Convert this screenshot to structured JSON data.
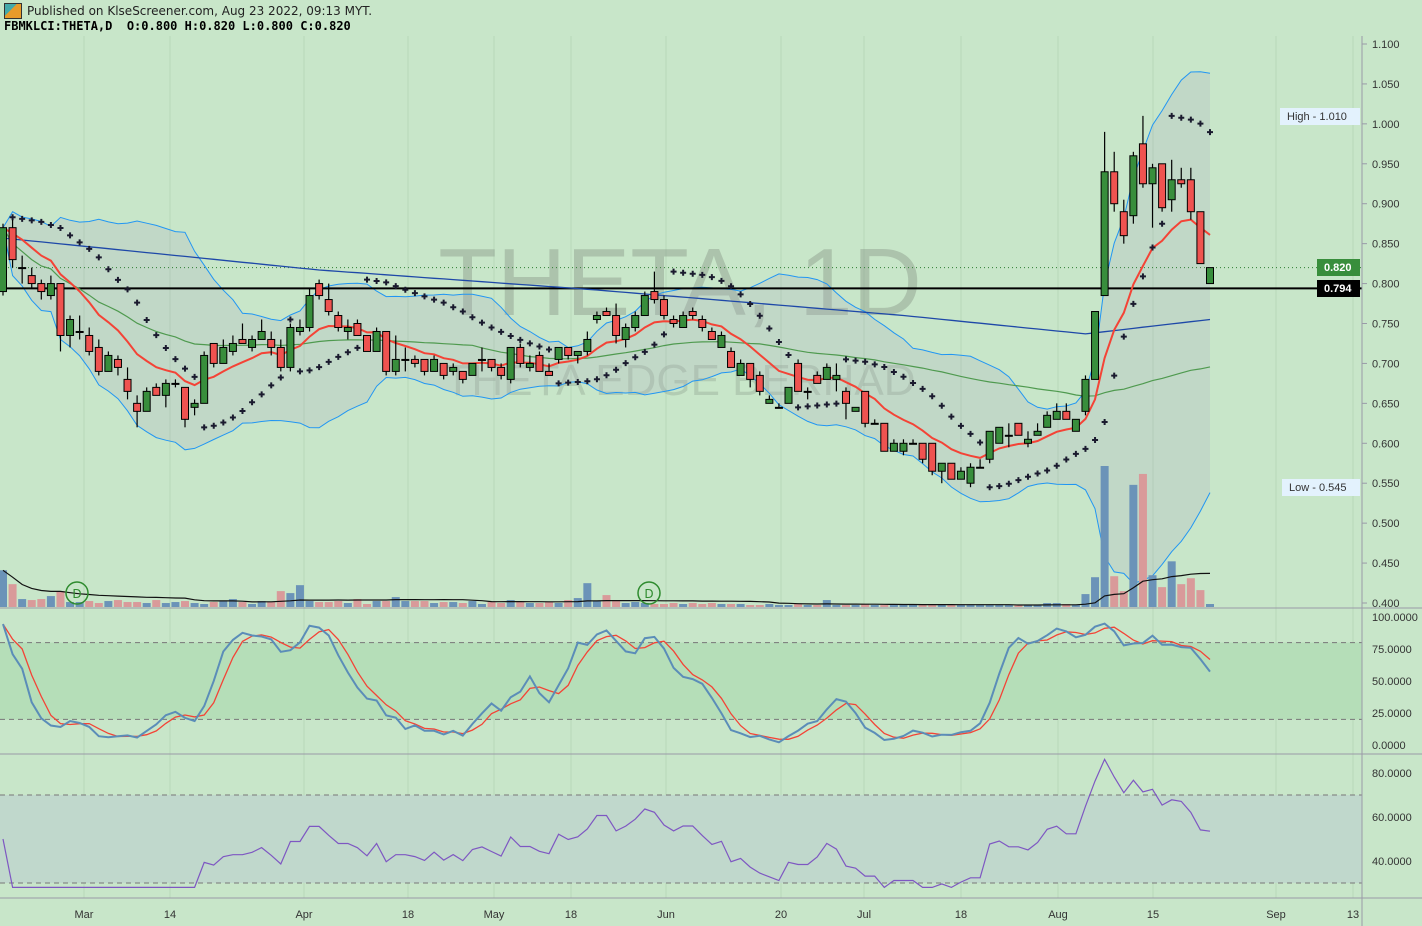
{
  "header": {
    "published": "Published on KlseScreener.com, Aug 23 2022, 09:13 MYT.",
    "symbol_line": "FBMKLCI:THETA,D  O:0.800 H:0.820 L:0.800 C:0.820"
  },
  "watermark": {
    "main": "THETA, 1D",
    "sub": "THETA EDGE BERHAD"
  },
  "colors": {
    "background": "#c8e6c9",
    "up": "#388e3c",
    "down": "#ef5350",
    "vol_up": "#6b93b8",
    "vol_down": "#d99a9a",
    "ema": "#f44336",
    "sma": "#4f9a4f",
    "ma_long": "#1e48a8",
    "bollinger": "#2196f3",
    "stoch_k": "#5b8db8",
    "stoch_d": "#f44336",
    "rsi": "#7e57c2",
    "sar": "#1a1a2e"
  },
  "markers": [
    {
      "label": "D"
    },
    {
      "label": "D"
    }
  ],
  "badges": {
    "high": "High - 1.010",
    "low": "Low - 0.545",
    "last": "0.820",
    "level": "0.794"
  },
  "chart_data": {
    "type": "candlestick",
    "price_ticks": [
      "1.100",
      "1.050",
      "1.000",
      "0.950",
      "0.900",
      "0.850",
      "0.800",
      "0.750",
      "0.700",
      "0.650",
      "0.600",
      "0.550",
      "0.500",
      "0.450",
      "0.400"
    ],
    "price_range": [
      0.4,
      1.1
    ],
    "x_tick_labels": [
      "Mar",
      "14",
      "Apr",
      "18",
      "May",
      "18",
      "Jun",
      "20",
      "Jul",
      "18",
      "Aug",
      "15",
      "Sep",
      "13"
    ],
    "stoch_ticks": [
      "100.0000",
      "75.0000",
      "50.0000",
      "25.0000",
      "0.0000"
    ],
    "stoch_bands": [
      20,
      80
    ],
    "rsi_ticks": [
      "80.0000",
      "60.0000",
      "40.0000"
    ],
    "rsi_bands": [
      30,
      70
    ],
    "last_price": 0.82,
    "horizontal_level": 0.794,
    "period_high": 1.01,
    "period_low": 0.545,
    "ohlc": [
      [
        0.79,
        0.875,
        0.785,
        0.87
      ],
      [
        0.87,
        0.88,
        0.82,
        0.83
      ],
      [
        0.82,
        0.835,
        0.8,
        0.82
      ],
      [
        0.81,
        0.82,
        0.795,
        0.8
      ],
      [
        0.8,
        0.805,
        0.78,
        0.79
      ],
      [
        0.785,
        0.81,
        0.78,
        0.8
      ],
      [
        0.8,
        0.8,
        0.715,
        0.735
      ],
      [
        0.735,
        0.76,
        0.72,
        0.755
      ],
      [
        0.74,
        0.76,
        0.73,
        0.74
      ],
      [
        0.735,
        0.745,
        0.71,
        0.715
      ],
      [
        0.72,
        0.73,
        0.685,
        0.69
      ],
      [
        0.69,
        0.715,
        0.69,
        0.71
      ],
      [
        0.705,
        0.71,
        0.685,
        0.695
      ],
      [
        0.68,
        0.695,
        0.655,
        0.665
      ],
      [
        0.65,
        0.66,
        0.62,
        0.64
      ],
      [
        0.64,
        0.67,
        0.64,
        0.665
      ],
      [
        0.67,
        0.675,
        0.66,
        0.66
      ],
      [
        0.66,
        0.68,
        0.645,
        0.675
      ],
      [
        0.675,
        0.68,
        0.67,
        0.675
      ],
      [
        0.67,
        0.67,
        0.62,
        0.63
      ],
      [
        0.645,
        0.655,
        0.635,
        0.65
      ],
      [
        0.65,
        0.715,
        0.65,
        0.71
      ],
      [
        0.725,
        0.725,
        0.695,
        0.7
      ],
      [
        0.7,
        0.73,
        0.7,
        0.72
      ],
      [
        0.715,
        0.735,
        0.71,
        0.725
      ],
      [
        0.73,
        0.75,
        0.725,
        0.725
      ],
      [
        0.72,
        0.735,
        0.715,
        0.73
      ],
      [
        0.73,
        0.755,
        0.73,
        0.74
      ],
      [
        0.73,
        0.74,
        0.71,
        0.72
      ],
      [
        0.72,
        0.73,
        0.69,
        0.695
      ],
      [
        0.695,
        0.75,
        0.69,
        0.745
      ],
      [
        0.74,
        0.755,
        0.735,
        0.745
      ],
      [
        0.745,
        0.795,
        0.74,
        0.785
      ],
      [
        0.8,
        0.805,
        0.78,
        0.785
      ],
      [
        0.78,
        0.8,
        0.76,
        0.765
      ],
      [
        0.76,
        0.765,
        0.74,
        0.745
      ],
      [
        0.74,
        0.755,
        0.73,
        0.745
      ],
      [
        0.75,
        0.755,
        0.735,
        0.735
      ],
      [
        0.735,
        0.735,
        0.715,
        0.715
      ],
      [
        0.715,
        0.745,
        0.715,
        0.74
      ],
      [
        0.74,
        0.74,
        0.685,
        0.69
      ],
      [
        0.69,
        0.735,
        0.685,
        0.705
      ],
      [
        0.705,
        0.72,
        0.69,
        0.705
      ],
      [
        0.705,
        0.71,
        0.695,
        0.7
      ],
      [
        0.705,
        0.705,
        0.685,
        0.69
      ],
      [
        0.69,
        0.71,
        0.69,
        0.705
      ],
      [
        0.7,
        0.7,
        0.68,
        0.685
      ],
      [
        0.69,
        0.7,
        0.685,
        0.695
      ],
      [
        0.69,
        0.69,
        0.675,
        0.68
      ],
      [
        0.685,
        0.7,
        0.685,
        0.7
      ],
      [
        0.705,
        0.72,
        0.69,
        0.705
      ],
      [
        0.705,
        0.705,
        0.69,
        0.695
      ],
      [
        0.695,
        0.7,
        0.68,
        0.685
      ],
      [
        0.68,
        0.72,
        0.675,
        0.72
      ],
      [
        0.72,
        0.725,
        0.695,
        0.7
      ],
      [
        0.695,
        0.71,
        0.69,
        0.7
      ],
      [
        0.71,
        0.715,
        0.69,
        0.69
      ],
      [
        0.69,
        0.7,
        0.685,
        0.685
      ],
      [
        0.705,
        0.72,
        0.7,
        0.72
      ],
      [
        0.72,
        0.72,
        0.705,
        0.71
      ],
      [
        0.71,
        0.715,
        0.7,
        0.715
      ],
      [
        0.715,
        0.74,
        0.71,
        0.73
      ],
      [
        0.755,
        0.765,
        0.75,
        0.76
      ],
      [
        0.765,
        0.77,
        0.76,
        0.76
      ],
      [
        0.76,
        0.775,
        0.725,
        0.735
      ],
      [
        0.73,
        0.75,
        0.72,
        0.745
      ],
      [
        0.745,
        0.765,
        0.74,
        0.76
      ],
      [
        0.76,
        0.79,
        0.76,
        0.785
      ],
      [
        0.79,
        0.815,
        0.775,
        0.78
      ],
      [
        0.78,
        0.785,
        0.755,
        0.76
      ],
      [
        0.755,
        0.76,
        0.745,
        0.75
      ],
      [
        0.745,
        0.765,
        0.745,
        0.76
      ],
      [
        0.765,
        0.77,
        0.755,
        0.76
      ],
      [
        0.755,
        0.76,
        0.74,
        0.745
      ],
      [
        0.74,
        0.745,
        0.73,
        0.73
      ],
      [
        0.72,
        0.74,
        0.72,
        0.735
      ],
      [
        0.715,
        0.72,
        0.695,
        0.695
      ],
      [
        0.685,
        0.705,
        0.685,
        0.7
      ],
      [
        0.7,
        0.7,
        0.67,
        0.68
      ],
      [
        0.685,
        0.69,
        0.66,
        0.665
      ],
      [
        0.65,
        0.66,
        0.65,
        0.655
      ],
      [
        0.645,
        0.65,
        0.645,
        0.645
      ],
      [
        0.65,
        0.67,
        0.65,
        0.67
      ],
      [
        0.7,
        0.705,
        0.665,
        0.665
      ],
      [
        0.665,
        0.67,
        0.655,
        0.665
      ],
      [
        0.685,
        0.69,
        0.675,
        0.675
      ],
      [
        0.68,
        0.7,
        0.68,
        0.695
      ],
      [
        0.68,
        0.7,
        0.665,
        0.685
      ],
      [
        0.665,
        0.67,
        0.63,
        0.65
      ],
      [
        0.64,
        0.645,
        0.64,
        0.645
      ],
      [
        0.665,
        0.665,
        0.62,
        0.625
      ],
      [
        0.625,
        0.63,
        0.625,
        0.625
      ],
      [
        0.625,
        0.625,
        0.59,
        0.59
      ],
      [
        0.59,
        0.605,
        0.59,
        0.6
      ],
      [
        0.59,
        0.605,
        0.585,
        0.6
      ],
      [
        0.6,
        0.605,
        0.6,
        0.6
      ],
      [
        0.6,
        0.6,
        0.575,
        0.58
      ],
      [
        0.6,
        0.6,
        0.56,
        0.565
      ],
      [
        0.565,
        0.575,
        0.55,
        0.575
      ],
      [
        0.575,
        0.575,
        0.555,
        0.555
      ],
      [
        0.555,
        0.57,
        0.555,
        0.565
      ],
      [
        0.55,
        0.575,
        0.545,
        0.57
      ],
      [
        0.57,
        0.58,
        0.57,
        0.57
      ],
      [
        0.58,
        0.615,
        0.575,
        0.615
      ],
      [
        0.6,
        0.62,
        0.6,
        0.62
      ],
      [
        0.61,
        0.625,
        0.595,
        0.61
      ],
      [
        0.625,
        0.625,
        0.61,
        0.61
      ],
      [
        0.6,
        0.615,
        0.595,
        0.605
      ],
      [
        0.61,
        0.625,
        0.61,
        0.615
      ],
      [
        0.62,
        0.64,
        0.62,
        0.635
      ],
      [
        0.63,
        0.65,
        0.63,
        0.64
      ],
      [
        0.64,
        0.65,
        0.63,
        0.63
      ],
      [
        0.615,
        0.63,
        0.615,
        0.63
      ],
      [
        0.64,
        0.685,
        0.635,
        0.68
      ],
      [
        0.68,
        0.765,
        0.68,
        0.765
      ],
      [
        0.785,
        0.99,
        0.785,
        0.94
      ],
      [
        0.94,
        0.965,
        0.89,
        0.9
      ],
      [
        0.89,
        0.905,
        0.85,
        0.86
      ],
      [
        0.885,
        0.965,
        0.875,
        0.96
      ],
      [
        0.975,
        1.01,
        0.92,
        0.925
      ],
      [
        0.925,
        0.95,
        0.87,
        0.945
      ],
      [
        0.95,
        0.95,
        0.89,
        0.895
      ],
      [
        0.905,
        0.955,
        0.89,
        0.93
      ],
      [
        0.93,
        0.945,
        0.92,
        0.925
      ],
      [
        0.93,
        0.945,
        0.88,
        0.89
      ],
      [
        0.89,
        0.89,
        0.825,
        0.825
      ],
      [
        0.8,
        0.82,
        0.8,
        0.82
      ]
    ],
    "volume_relative": [
      37,
      23,
      8,
      7,
      8,
      11,
      16,
      5,
      5,
      6,
      4,
      6,
      7,
      5,
      5,
      4,
      7,
      4,
      5,
      6,
      4,
      3,
      5,
      6,
      8,
      5,
      3,
      6,
      5,
      16,
      14,
      22,
      6,
      5,
      5,
      6,
      4,
      8,
      3,
      6,
      6,
      10,
      6,
      6,
      6,
      4,
      5,
      5,
      4,
      6,
      3,
      5,
      4,
      7,
      5,
      4,
      4,
      5,
      4,
      7,
      9,
      24,
      6,
      12,
      6,
      4,
      5,
      4,
      3,
      3,
      4,
      3,
      4,
      3,
      4,
      3,
      3,
      3,
      2,
      2,
      3,
      2,
      2,
      3,
      2,
      2,
      7,
      2,
      2,
      2,
      3,
      2,
      2,
      2,
      2,
      2,
      2,
      2,
      2,
      2,
      2,
      2,
      2,
      2,
      2,
      2,
      2,
      2,
      2,
      4,
      4,
      3,
      2,
      13,
      30,
      142,
      31,
      16,
      123,
      134,
      32,
      20,
      46,
      23,
      29,
      17,
      3
    ],
    "ma_long_anchors": [
      [
        0,
        0.857
      ],
      [
        33,
        0.817
      ],
      [
        62,
        0.792
      ],
      [
        94,
        0.76
      ],
      [
        113,
        0.737
      ],
      [
        126,
        0.755
      ]
    ]
  }
}
